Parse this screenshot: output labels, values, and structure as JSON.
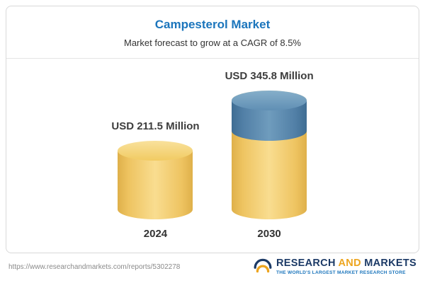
{
  "header": {
    "title": "Campesterol Market",
    "subtitle": "Market forecast to grow at a CAGR of 8.5%"
  },
  "chart_data": {
    "type": "bar",
    "title": "Campesterol Market",
    "subtitle": "Market forecast to grow at a CAGR of 8.5%",
    "cagr_pct": 8.5,
    "unit": "USD Million",
    "categories": [
      "2024",
      "2030"
    ],
    "values": [
      211.5,
      345.8
    ],
    "value_labels": [
      "USD 211.5 Million",
      "USD 345.8 Million"
    ],
    "growth_segment": {
      "applies_to": "2030",
      "value": 134.3,
      "color": "#517fa6"
    },
    "legend": "none",
    "grid": false,
    "colors": {
      "bar_yellow": "#f2cd6e",
      "bar_blue": "#517fa6",
      "title_blue": "#1b75bc"
    }
  },
  "footer": {
    "url": "https://www.researchandmarkets.com/reports/5302278",
    "logo": {
      "research": "RESEARCH",
      "and": "AND",
      "markets": "MARKETS",
      "tagline": "THE WORLD'S LARGEST MARKET RESEARCH STORE"
    }
  }
}
